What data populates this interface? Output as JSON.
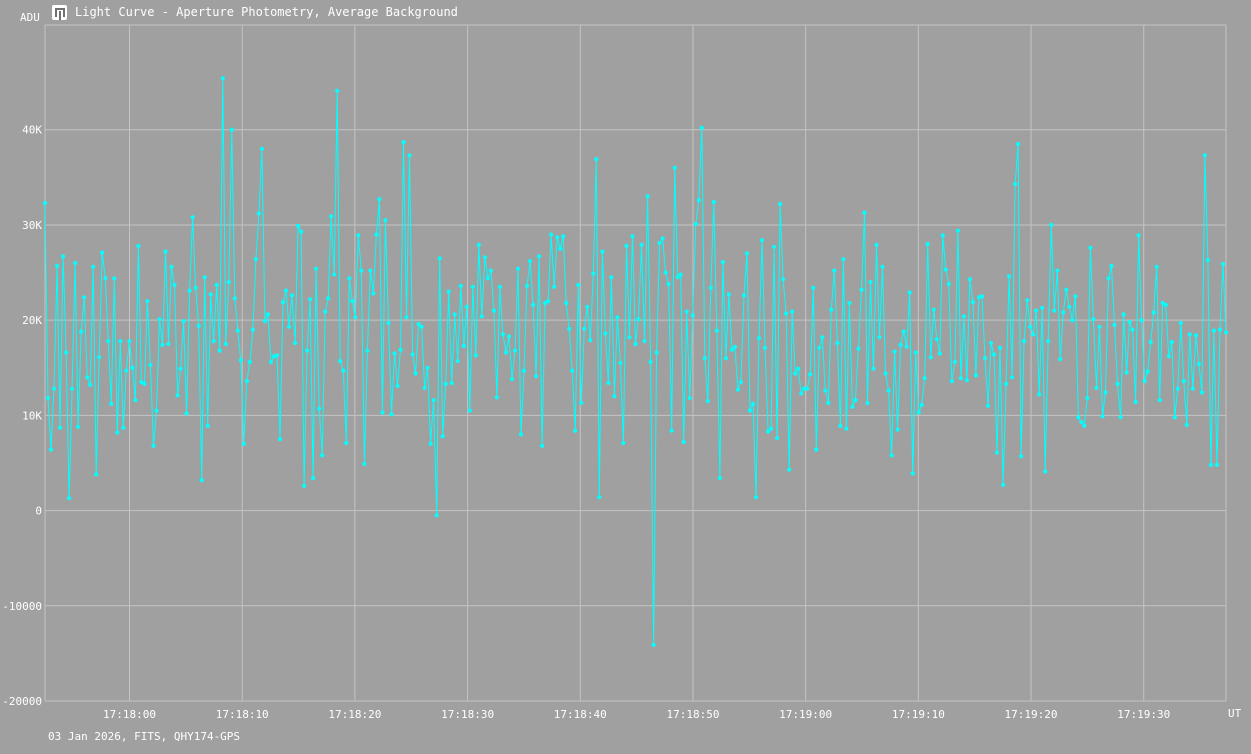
{
  "window": {
    "title": "Light Curve - Aperture Photometry, Average Background",
    "icon": "light-curve-app-icon"
  },
  "footer": "03 Jan 2026, FITS, QHY174-GPS",
  "colors": {
    "background": "#a0a0a0",
    "grid": "#c4c4c4",
    "series": "#00ffff",
    "text": "#ffffff"
  },
  "chart_data": {
    "type": "line",
    "title": "Light Curve - Aperture Photometry, Average Background",
    "ylabel": "ADU",
    "xlabel": "UT",
    "xlim": [
      "17:17:52.5",
      "17:19:37.3"
    ],
    "ylim": [
      -20000,
      51000
    ],
    "yticks": [
      {
        "value": -20000,
        "label": "-20000"
      },
      {
        "value": -10000,
        "label": "-10000"
      },
      {
        "value": 0,
        "label": "0"
      },
      {
        "value": 10000,
        "label": "10K"
      },
      {
        "value": 20000,
        "label": "20K"
      },
      {
        "value": 30000,
        "label": "30K"
      },
      {
        "value": 40000,
        "label": "40K"
      }
    ],
    "xticks": [
      "17:18:00",
      "17:18:10",
      "17:18:20",
      "17:18:30",
      "17:18:40",
      "17:18:50",
      "17:19:00",
      "17:19:10",
      "17:19:20",
      "17:19:30"
    ],
    "grid": true,
    "legend": "none",
    "markers": true,
    "series": [
      {
        "values": [
          32300,
          11800,
          6400,
          12800,
          25700,
          8700,
          26700,
          16600,
          1300,
          12800,
          26000,
          8800,
          18800,
          22400,
          14000,
          13200,
          25600,
          3800,
          16100,
          27100,
          24400,
          17800,
          11200,
          24400,
          8200,
          17800,
          8700,
          14700,
          17800,
          15000,
          11600,
          27800,
          13500,
          13300,
          22000,
          15300,
          6800,
          10500,
          20100,
          17400,
          27200,
          17500,
          25600,
          23700,
          12100,
          14900,
          19900,
          10200,
          23100,
          30800,
          23400,
          19400,
          3200,
          24500,
          8900,
          22700,
          17800,
          23700,
          16800,
          45400,
          17500,
          24000,
          40000,
          22300,
          18900,
          15800,
          7000,
          13600,
          15600,
          19000,
          26400,
          31200,
          38000,
          19900,
          20600,
          15600,
          16200,
          16300,
          7500,
          21900,
          23100,
          19300,
          22600,
          17600,
          29900,
          29300,
          2600,
          16800,
          22200,
          3400,
          25400,
          10700,
          5800,
          20900,
          22300,
          30900,
          24800,
          44100,
          15700,
          14700,
          7100,
          24400,
          22000,
          20300,
          28900,
          25200,
          4900,
          16800,
          25200,
          22800,
          29000,
          32700,
          10300,
          30500,
          19700,
          10100,
          16500,
          13100,
          16900,
          38700,
          20300,
          37300,
          16400,
          14400,
          19600,
          19300,
          12900,
          15000,
          7000,
          11600,
          -500,
          26500,
          7800,
          13300,
          23000,
          13400,
          20600,
          15700,
          23600,
          17300,
          21400,
          10500,
          23500,
          16300,
          27900,
          20400,
          26600,
          24400,
          25200,
          21000,
          11900,
          23500,
          18500,
          16600,
          18300,
          13800,
          16800,
          25400,
          8000,
          14700,
          23600,
          26200,
          21600,
          14100,
          26700,
          6800,
          21800,
          22000,
          29000,
          23500,
          28700,
          27500,
          28800,
          21800,
          19100,
          14700,
          8400,
          23700,
          11300,
          19100,
          21400,
          17900,
          24900,
          36900,
          1400,
          27200,
          18600,
          13400,
          24500,
          12000,
          20300,
          15500,
          7100,
          27800,
          18200,
          28800,
          17500,
          20100,
          27900,
          17800,
          33000,
          15600,
          -14100,
          16600,
          28100,
          28600,
          25000,
          23800,
          8400,
          36000,
          24500,
          24800,
          7200,
          20900,
          11800,
          20500,
          30100,
          32600,
          40200,
          16000,
          11500,
          23400,
          32400,
          18900,
          3400,
          26100,
          16000,
          22700,
          16900,
          17200,
          12700,
          13500,
          22600,
          27000,
          10500,
          11200,
          1400,
          18100,
          28400,
          17100,
          8300,
          8600,
          27700,
          7600,
          32200,
          24300,
          20700,
          4300,
          20900,
          14400,
          14900,
          12300,
          12800,
          12800,
          14300,
          23400,
          6400,
          17100,
          18200,
          12600,
          11300,
          21100,
          25200,
          17600,
          8900,
          26400,
          8600,
          21800,
          10900,
          11600,
          17000,
          23200,
          31300,
          11300,
          24000,
          14900,
          27900,
          18200,
          25600,
          14400,
          12600,
          5800,
          16700,
          8500,
          17400,
          18800,
          17200,
          22900,
          3900,
          16600,
          10300,
          11100,
          13900,
          28000,
          16100,
          21100,
          18000,
          16500,
          28900,
          25300,
          23800,
          13600,
          15600,
          29400,
          13900,
          20400,
          13700,
          24300,
          21900,
          14200,
          22400,
          22500,
          16000,
          11000,
          17600,
          16400,
          6100,
          17100,
          2700,
          13300,
          24600,
          14000,
          34300,
          38500,
          5700,
          17800,
          22100,
          19300,
          18500,
          21000,
          12200,
          21300,
          4100,
          17800,
          30000,
          21000,
          25200,
          15900,
          20800,
          23200,
          21400,
          20000,
          22500,
          9800,
          9300,
          8900,
          11800,
          27600,
          20100,
          12900,
          19300,
          9900,
          12400,
          24400,
          25700,
          19500,
          13300,
          9800,
          20600,
          14500,
          19800,
          19000,
          11400,
          28900,
          20000,
          13600,
          14600,
          17700,
          20800,
          25600,
          11600,
          21800,
          21600,
          16200,
          17700,
          9800,
          12800,
          19700,
          13600,
          9000,
          18500,
          12800,
          18400,
          15400,
          12400,
          37300,
          26300,
          4800,
          18900,
          4800,
          19000,
          25900,
          18700
        ]
      }
    ]
  }
}
